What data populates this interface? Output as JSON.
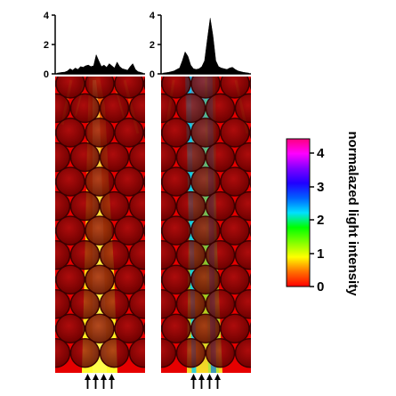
{
  "histograms": {
    "left": {
      "y_ticks": [
        "4",
        "2",
        "0"
      ],
      "ylim": [
        0,
        4
      ],
      "profile": [
        0.05,
        0.08,
        0.1,
        0.12,
        0.2,
        0.35,
        0.25,
        0.4,
        0.3,
        0.5,
        0.45,
        0.55,
        0.6,
        0.5,
        0.55,
        1.3,
        0.9,
        0.5,
        0.6,
        0.45,
        0.7,
        0.55,
        0.4,
        0.8,
        0.5,
        0.35,
        0.3,
        0.25,
        0.5,
        0.7,
        0.3,
        0.15,
        0.1,
        0.05
      ]
    },
    "right": {
      "y_ticks": [
        "4",
        "2",
        "0"
      ],
      "ylim": [
        0,
        4
      ],
      "profile": [
        0.05,
        0.08,
        0.1,
        0.15,
        0.2,
        0.3,
        0.4,
        0.9,
        1.5,
        1.2,
        0.6,
        0.35,
        0.3,
        0.35,
        0.5,
        0.9,
        2.4,
        3.8,
        2.6,
        0.9,
        0.5,
        0.4,
        0.35,
        0.3,
        0.4,
        0.45,
        0.3,
        0.2,
        0.15,
        0.1,
        0.08,
        0.05
      ]
    }
  },
  "colorbar": {
    "tick_labels": [
      "4",
      "3",
      "2",
      "1",
      "0"
    ],
    "range": [
      0,
      4.4
    ],
    "label": "normalazed light intensity",
    "colors": [
      "#ff0000",
      "#ff7000",
      "#ffff00",
      "#80ff00",
      "#00ff00",
      "#00e0ff",
      "#0060ff",
      "#2000ff",
      "#8000ff",
      "#ff00ff",
      "#ff0080"
    ]
  },
  "arrows": {
    "left_count": 4,
    "right_count": 4,
    "symbol": "↑"
  },
  "panels": {
    "field_color": "#e60000",
    "sphere_color": "#7a0000",
    "beam_color": "#ffee00"
  }
}
